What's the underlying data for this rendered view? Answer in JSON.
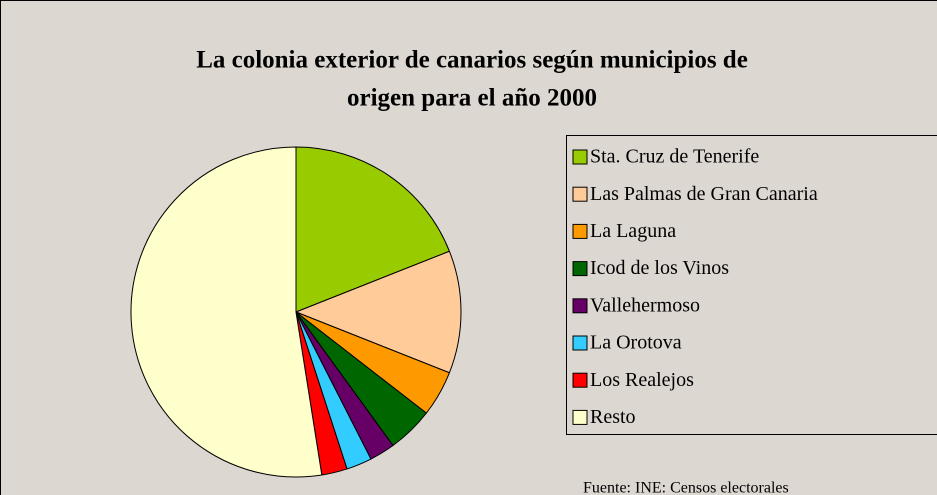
{
  "chart_data": {
    "type": "pie",
    "title": [
      "La colonia exterior de canarios según municipios de",
      "origen para el año 2000"
    ],
    "source": "Fuente: INE: Censos electorales",
    "categories": [
      "Sta. Cruz de Tenerife",
      "Las Palmas de Gran Canaria",
      "La Laguna",
      "Icod de los Vinos",
      "Vallehermoso",
      "La Orotova",
      "Los Realejos",
      "Resto"
    ],
    "values": [
      19,
      12,
      4.5,
      4.5,
      2.5,
      2.5,
      2.5,
      52.5
    ],
    "colors": [
      "#99cc00",
      "#ffcc99",
      "#ff9900",
      "#006600",
      "#660066",
      "#33ccff",
      "#ff0000",
      "#ffffcc"
    ],
    "legend": "right"
  }
}
